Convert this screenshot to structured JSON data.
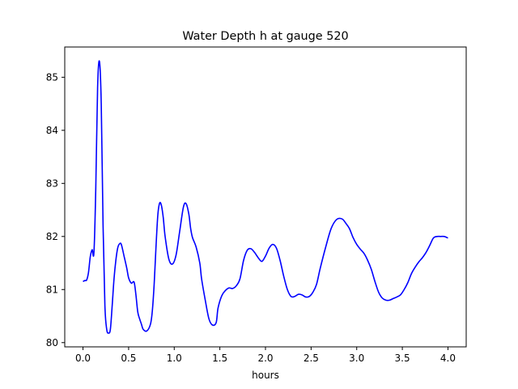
{
  "chart_data": {
    "type": "line",
    "title": "Water Depth h at gauge 520",
    "xlabel": "hours",
    "ylabel": "",
    "xlim": [
      -0.2,
      4.2
    ],
    "ylim": [
      79.92,
      85.57
    ],
    "xticks": [
      0.0,
      0.5,
      1.0,
      1.5,
      2.0,
      2.5,
      3.0,
      3.5,
      4.0
    ],
    "xtick_labels": [
      "0.0",
      "0.5",
      "1.0",
      "1.5",
      "2.0",
      "2.5",
      "3.0",
      "3.5",
      "4.0"
    ],
    "yticks": [
      80,
      81,
      82,
      83,
      84,
      85
    ],
    "ytick_labels": [
      "80",
      "81",
      "82",
      "83",
      "84",
      "85"
    ],
    "grid": false,
    "line_color": "#0000ff",
    "series": [
      {
        "x": [
          0.0,
          0.02,
          0.04,
          0.06,
          0.08,
          0.1,
          0.12,
          0.14,
          0.16,
          0.18,
          0.2,
          0.22,
          0.24,
          0.26,
          0.28,
          0.3,
          0.32,
          0.34,
          0.36,
          0.38,
          0.4,
          0.42,
          0.45,
          0.48,
          0.5,
          0.53,
          0.56,
          0.58,
          0.6,
          0.62,
          0.64,
          0.66,
          0.7,
          0.74,
          0.76,
          0.78,
          0.8,
          0.82,
          0.84,
          0.86,
          0.88,
          0.9,
          0.94,
          0.98,
          1.02,
          1.06,
          1.1,
          1.13,
          1.16,
          1.18,
          1.2,
          1.24,
          1.28,
          1.3,
          1.34,
          1.38,
          1.42,
          1.46,
          1.48,
          1.52,
          1.56,
          1.6,
          1.64,
          1.68,
          1.72,
          1.76,
          1.8,
          1.84,
          1.88,
          1.92,
          1.96,
          2.0,
          2.04,
          2.08,
          2.12,
          2.16,
          2.2,
          2.24,
          2.28,
          2.32,
          2.36,
          2.4,
          2.44,
          2.48,
          2.52,
          2.56,
          2.6,
          2.66,
          2.72,
          2.78,
          2.84,
          2.88,
          2.92,
          2.96,
          3.0,
          3.04,
          3.08,
          3.12,
          3.16,
          3.2,
          3.24,
          3.28,
          3.32,
          3.36,
          3.4,
          3.44,
          3.48,
          3.52,
          3.56,
          3.6,
          3.64,
          3.68,
          3.72,
          3.76,
          3.8,
          3.84,
          3.88,
          3.92,
          3.96,
          4.0
        ],
        "y": [
          81.15,
          81.17,
          81.18,
          81.32,
          81.62,
          81.75,
          81.7,
          82.9,
          84.8,
          85.3,
          84.5,
          82.2,
          80.7,
          80.25,
          80.18,
          80.25,
          80.7,
          81.2,
          81.55,
          81.78,
          81.86,
          81.85,
          81.63,
          81.4,
          81.22,
          81.12,
          81.14,
          80.9,
          80.58,
          80.45,
          80.35,
          80.25,
          80.22,
          80.35,
          80.6,
          81.1,
          81.8,
          82.4,
          82.63,
          82.58,
          82.35,
          82.0,
          81.58,
          81.48,
          81.65,
          82.1,
          82.55,
          82.62,
          82.42,
          82.15,
          81.98,
          81.8,
          81.5,
          81.2,
          80.8,
          80.45,
          80.33,
          80.38,
          80.65,
          80.88,
          80.98,
          81.03,
          81.02,
          81.07,
          81.2,
          81.55,
          81.74,
          81.77,
          81.7,
          81.6,
          81.53,
          81.63,
          81.78,
          81.85,
          81.78,
          81.55,
          81.25,
          81.0,
          80.87,
          80.87,
          80.91,
          80.9,
          80.86,
          80.87,
          80.95,
          81.1,
          81.4,
          81.8,
          82.15,
          82.32,
          82.33,
          82.25,
          82.15,
          81.98,
          81.85,
          81.76,
          81.68,
          81.55,
          81.38,
          81.15,
          80.95,
          80.84,
          80.8,
          80.8,
          80.83,
          80.86,
          80.9,
          81.0,
          81.13,
          81.3,
          81.42,
          81.52,
          81.6,
          81.7,
          81.83,
          81.97,
          82.0,
          82.0,
          82.0,
          81.97
        ]
      }
    ]
  }
}
